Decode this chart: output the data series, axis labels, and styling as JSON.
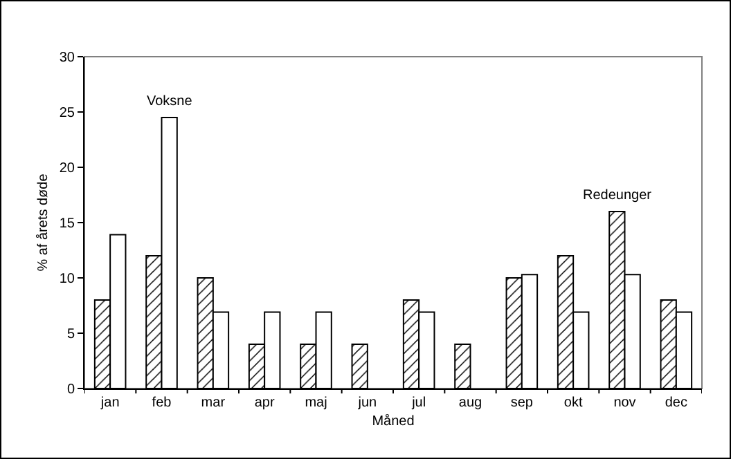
{
  "chart_data": {
    "type": "bar",
    "xlabel": "Måned",
    "ylabel": "% af årets døde",
    "categories": [
      "jan",
      "feb",
      "mar",
      "apr",
      "maj",
      "jun",
      "jul",
      "aug",
      "sep",
      "okt",
      "nov",
      "dec"
    ],
    "series": [
      {
        "name": "Redeunger",
        "color": "#000000",
        "values": [
          8,
          12,
          10,
          4,
          4,
          4,
          8,
          4,
          10,
          12,
          16,
          8
        ]
      },
      {
        "name": "Voksne",
        "color": "#ffffff",
        "values": [
          13.9,
          24.5,
          6.9,
          6.9,
          6.9,
          null,
          6.9,
          null,
          10.3,
          6.9,
          10.3,
          6.9
        ]
      }
    ],
    "ylim": [
      0,
      30
    ],
    "yticks": [
      0,
      5,
      10,
      15,
      20,
      25,
      30
    ],
    "grid": false,
    "legend": false
  }
}
